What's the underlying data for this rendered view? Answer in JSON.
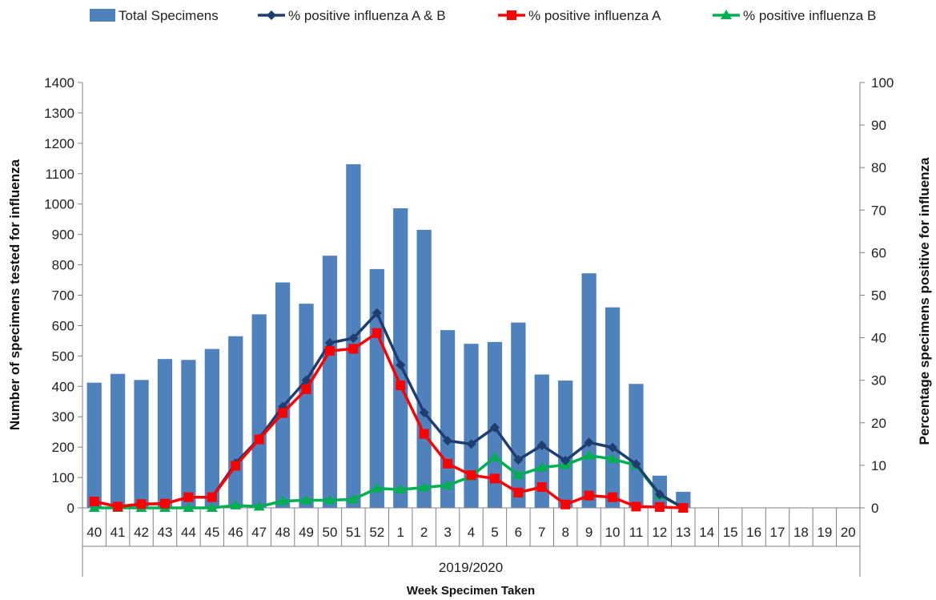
{
  "chart_data": {
    "type": "bar+line",
    "title": "",
    "xlabel": "Week Specimen Taken",
    "x_group_label": "2019/2020",
    "ylabel_left": "Number of specimens tested for influenza",
    "ylabel_right": "Percentage specimens positive for influenza",
    "ylim_left": [
      0,
      1400
    ],
    "ylim_right": [
      0,
      100
    ],
    "yticks_left": [
      0,
      100,
      200,
      300,
      400,
      500,
      600,
      700,
      800,
      900,
      1000,
      1100,
      1200,
      1300,
      1400
    ],
    "yticks_right": [
      0,
      10,
      20,
      30,
      40,
      50,
      60,
      70,
      80,
      90,
      100
    ],
    "grid": false,
    "legend_position": "top",
    "categories": [
      "40",
      "41",
      "42",
      "43",
      "44",
      "45",
      "46",
      "47",
      "48",
      "49",
      "50",
      "51",
      "52",
      "1",
      "2",
      "3",
      "4",
      "5",
      "6",
      "7",
      "8",
      "9",
      "10",
      "11",
      "12",
      "13",
      "14",
      "15",
      "16",
      "17",
      "18",
      "19",
      "20"
    ],
    "bars": {
      "name": "Total Specimens",
      "axis": "left",
      "color": "#4F81BD",
      "values": [
        412,
        441,
        421,
        490,
        487,
        523,
        565,
        637,
        742,
        672,
        830,
        1131,
        786,
        986,
        915,
        585,
        540,
        546,
        610,
        439,
        419,
        772,
        660,
        408,
        106,
        53,
        null,
        null,
        null,
        null,
        null,
        null,
        null
      ]
    },
    "series": [
      {
        "name": "% positive influenza A & B",
        "axis": "right",
        "color": "#1F3D6E",
        "marker": "diamond",
        "values": [
          1.5,
          0.3,
          0.9,
          1.0,
          2.5,
          2.5,
          10.5,
          16.3,
          23.8,
          30.0,
          38.8,
          39.9,
          45.8,
          33.6,
          22.4,
          15.8,
          15.0,
          18.9,
          11.3,
          14.7,
          11.1,
          15.4,
          14.2,
          10.3,
          3.2,
          0.0,
          null,
          null,
          null,
          null,
          null,
          null,
          null
        ]
      },
      {
        "name": "% positive influenza A",
        "axis": "right",
        "color": "#FF0000",
        "marker": "square",
        "values": [
          1.5,
          0.3,
          0.9,
          1.0,
          2.5,
          2.5,
          9.9,
          16.1,
          22.3,
          27.9,
          36.9,
          37.4,
          41.1,
          28.8,
          17.4,
          10.4,
          7.7,
          6.9,
          3.6,
          4.9,
          0.8,
          2.9,
          2.5,
          0.3,
          0.2,
          0.0,
          null,
          null,
          null,
          null,
          null,
          null,
          null
        ]
      },
      {
        "name": "% positive influenza B",
        "axis": "right",
        "color": "#00B050",
        "marker": "triangle",
        "values": [
          0.0,
          0.0,
          0.0,
          0.0,
          0.0,
          0.0,
          0.6,
          0.3,
          1.6,
          1.8,
          1.8,
          2.0,
          4.6,
          4.3,
          4.8,
          5.3,
          7.4,
          11.9,
          7.7,
          9.5,
          10.1,
          12.3,
          11.5,
          10.0,
          3.0,
          0.0,
          null,
          null,
          null,
          null,
          null,
          null,
          null
        ]
      }
    ]
  }
}
